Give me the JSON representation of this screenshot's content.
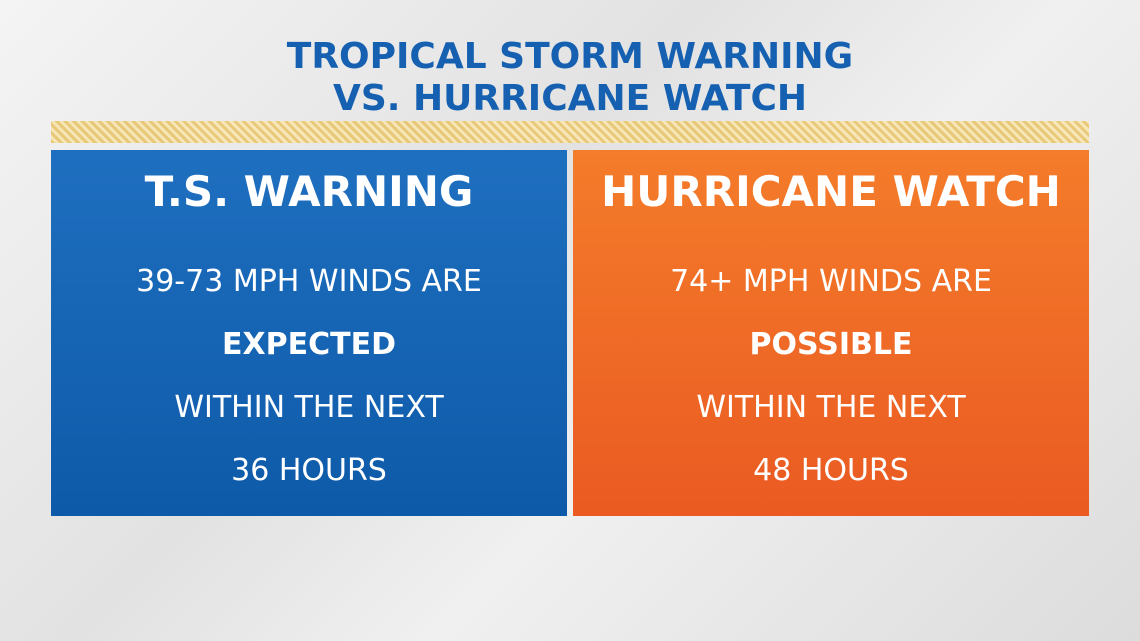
{
  "header": {
    "title_line1": "TROPICAL STORM WARNING",
    "title_line2": "VS. HURRICANE WATCH"
  },
  "panels": [
    {
      "heading": "T.S. WARNING",
      "lines": [
        "39-73 MPH WINDS ARE",
        "EXPECTED",
        "WITHIN THE NEXT",
        "36 HOURS"
      ]
    },
    {
      "heading": "HURRICANE WATCH",
      "lines": [
        "74+ MPH WINDS ARE",
        "POSSIBLE",
        "WITHIN THE NEXT",
        "48 HOURS"
      ]
    }
  ]
}
